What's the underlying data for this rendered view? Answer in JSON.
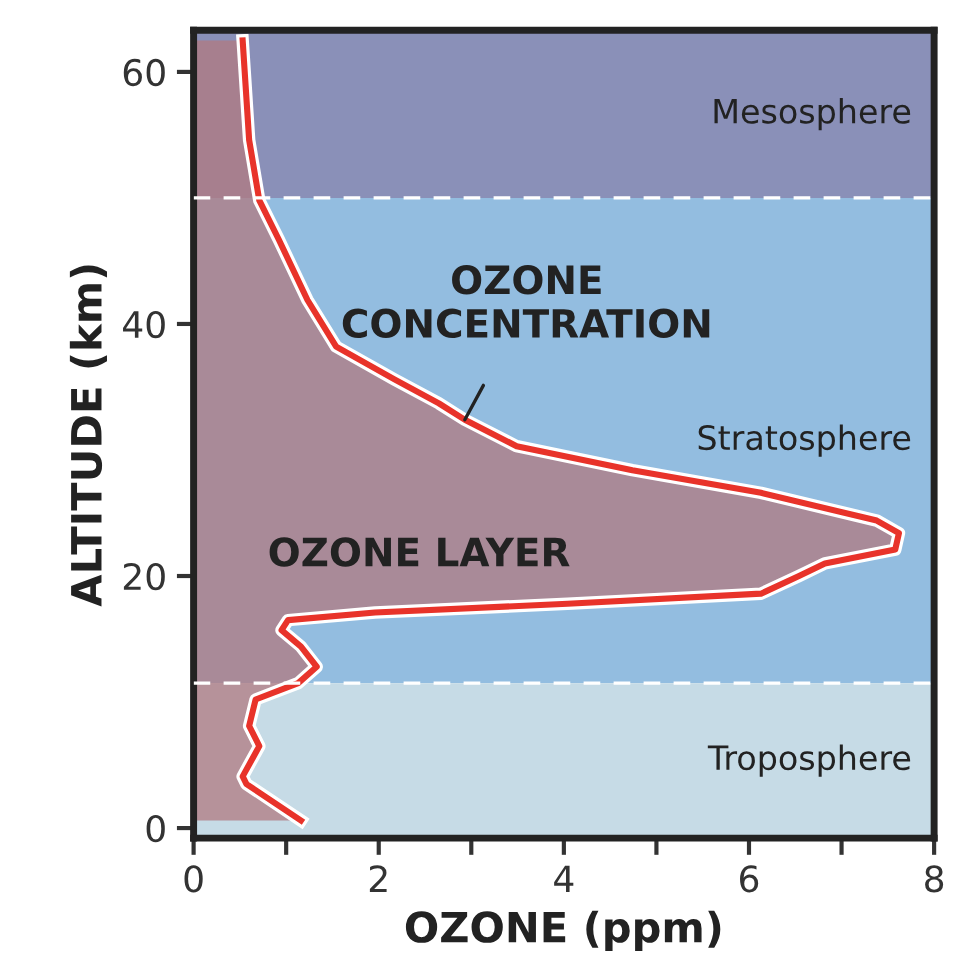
{
  "chart_data": {
    "type": "area",
    "orientation": "horizontal",
    "xlabel": "OZONE (ppm)",
    "ylabel": "ALTITUDE (km)",
    "xlim": [
      0,
      8
    ],
    "ylim": [
      -0.8,
      63.3
    ],
    "xticks": [
      0,
      {
        "value": 1,
        "label": null
      },
      2,
      {
        "value": 3,
        "label": null
      },
      4,
      {
        "value": 5,
        "label": null
      },
      6,
      {
        "value": 7,
        "label": null
      },
      8
    ],
    "yticks": [
      0,
      20,
      40,
      60
    ],
    "grid": false,
    "legend": false,
    "series": [
      {
        "color": "#e8332a",
        "x": [
          0.6,
          3.5,
          4.1,
          6.5,
          8.1,
          10.2,
          11.5,
          12.8,
          14.4,
          15.7,
          16.5,
          17.1,
          17.8,
          18.6,
          20.0,
          21.0,
          22.1,
          23.4,
          24.4,
          26.6,
          28.4,
          30.3,
          32.4,
          33.7,
          35.6,
          38.2,
          41.9,
          46.7,
          49.8,
          54.6,
          62.5
        ],
        "values": [
          1.16,
          0.57,
          0.53,
          0.71,
          0.6,
          0.67,
          1.13,
          1.33,
          1.16,
          0.95,
          1.02,
          1.96,
          4.04,
          6.13,
          6.54,
          6.82,
          7.58,
          7.62,
          7.38,
          6.13,
          4.74,
          3.49,
          2.93,
          2.65,
          2.17,
          1.54,
          1.23,
          0.92,
          0.71,
          0.6,
          0.53
        ]
      }
    ],
    "bands": [
      {
        "axis": "y",
        "from": 50,
        "to": 63.3,
        "label": "Mesosphere",
        "color": "#8a90b8"
      },
      {
        "axis": "y",
        "from": 11.5,
        "to": 50,
        "label": "Stratosphere",
        "color": "#93bde0"
      },
      {
        "axis": "y",
        "from": -0.8,
        "to": 11.5,
        "label": "Troposphere",
        "color": "#c6dbe6"
      }
    ],
    "ref_lines": [
      {
        "axis": "y",
        "value": 50,
        "color": "#ffffff",
        "line_style": "dashed"
      },
      {
        "axis": "y",
        "value": 11.5,
        "color": "#ffffff",
        "line_style": "dashed"
      }
    ],
    "annotations": [
      {
        "text": "OZONE\nCONCENTRATION",
        "x": 2.93,
        "y": 32.4
      },
      "OZONE LAYER"
    ]
  }
}
